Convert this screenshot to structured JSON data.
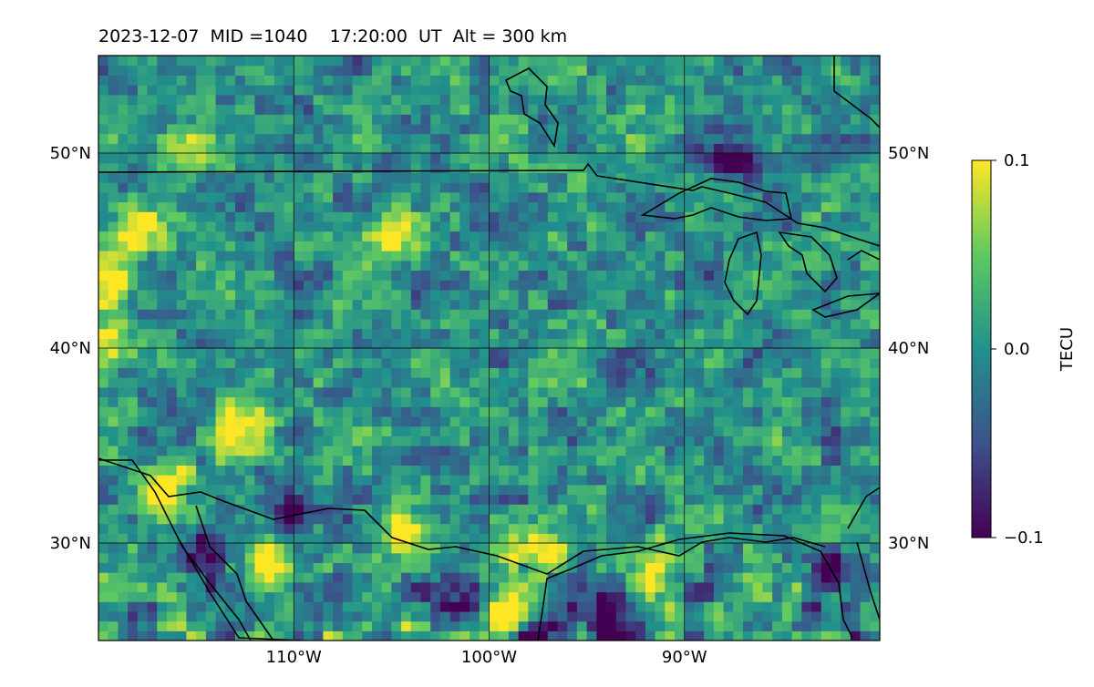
{
  "chart_data": {
    "type": "heatmap",
    "title": "2023-12-07  MID =1040    17:20:00  UT  Alt = 300 km",
    "projection": "map (plate carree), lon/lat grid",
    "lon_range": [
      -120,
      -80
    ],
    "lat_range": [
      25,
      55
    ],
    "x_ticks": [
      {
        "value": -110,
        "label": "110°W"
      },
      {
        "value": -100,
        "label": "100°W"
      },
      {
        "value": -90,
        "label": "90°W"
      }
    ],
    "y_ticks": [
      {
        "value": 30,
        "label": "30°N"
      },
      {
        "value": 40,
        "label": "40°N"
      },
      {
        "value": 50,
        "label": "50°N"
      }
    ],
    "grid": true,
    "colorbar": {
      "label": "TECU",
      "min": -0.1,
      "max": 0.1,
      "colormap": "viridis",
      "ticks": [
        {
          "value": 0.1,
          "label": "0.1"
        },
        {
          "value": 0.0,
          "label": "0.0"
        },
        {
          "value": -0.1,
          "label": "−0.1"
        }
      ]
    },
    "cell_size_deg": 0.5,
    "hotspots": [
      {
        "lon": -111.5,
        "lat": 29.0,
        "value": 0.1
      },
      {
        "lon": -104.5,
        "lat": 30.5,
        "value": 0.1
      },
      {
        "lon": -97.5,
        "lat": 29.5,
        "value": 0.1
      },
      {
        "lon": -91.5,
        "lat": 28.5,
        "value": 0.1
      },
      {
        "lon": -99.0,
        "lat": 26.5,
        "value": 0.1
      },
      {
        "lon": -112.5,
        "lat": 36.0,
        "value": 0.1
      },
      {
        "lon": -116.5,
        "lat": 33.0,
        "value": 0.1
      },
      {
        "lon": -119.5,
        "lat": 43.5,
        "value": 0.1
      },
      {
        "lon": -119.5,
        "lat": 40.5,
        "value": 0.08
      },
      {
        "lon": -118.0,
        "lat": 46.0,
        "value": 0.08
      },
      {
        "lon": -115.5,
        "lat": 50.5,
        "value": 0.08
      },
      {
        "lon": -105.0,
        "lat": 46.0,
        "value": 0.08
      },
      {
        "lon": -97.5,
        "lat": 25.5,
        "value": -0.1
      },
      {
        "lon": -101.5,
        "lat": 27.5,
        "value": -0.1
      },
      {
        "lon": -94.0,
        "lat": 26.0,
        "value": -0.1
      },
      {
        "lon": -114.5,
        "lat": 29.0,
        "value": -0.1
      },
      {
        "lon": -110.0,
        "lat": 31.5,
        "value": -0.1
      },
      {
        "lon": -87.5,
        "lat": 49.8,
        "value": -0.1
      },
      {
        "lon": -82.5,
        "lat": 28.5,
        "value": -0.1
      }
    ]
  }
}
